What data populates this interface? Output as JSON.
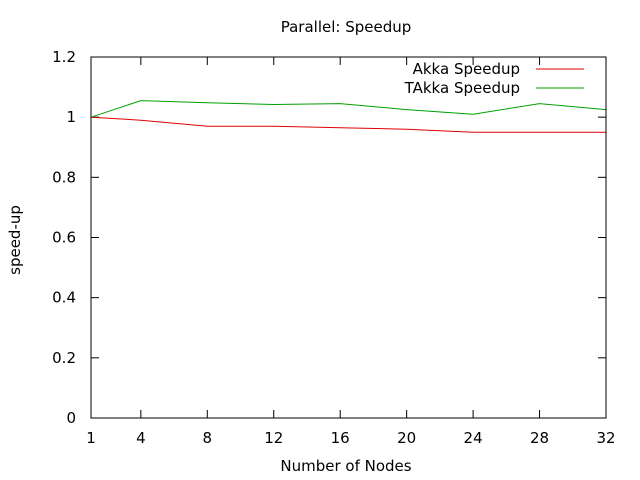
{
  "chart_data": {
    "type": "line",
    "title": "Parallel: Speedup",
    "xlabel": "Number of Nodes",
    "ylabel": "speed-up",
    "x": [
      1,
      4,
      8,
      12,
      16,
      20,
      24,
      28,
      32
    ],
    "xticks": [
      "1",
      "4",
      "8",
      "12",
      "16",
      "20",
      "24",
      "28",
      "32"
    ],
    "xlim": [
      1,
      32
    ],
    "ylim": [
      0,
      1.2
    ],
    "yticks": [
      "0",
      "0.2",
      "0.4",
      "0.6",
      "0.8",
      "1",
      "1.2"
    ],
    "grid": false,
    "legend_position": "top-right",
    "series": [
      {
        "name": "Akka Speedup",
        "color": "#e00000",
        "values": [
          1.0,
          0.99,
          0.97,
          0.97,
          0.965,
          0.96,
          0.95,
          0.95,
          0.95
        ]
      },
      {
        "name": "TAkka Speedup",
        "color": "#00a000",
        "values": [
          1.0,
          1.055,
          1.048,
          1.042,
          1.045,
          1.025,
          1.01,
          1.045,
          1.025
        ]
      }
    ]
  }
}
